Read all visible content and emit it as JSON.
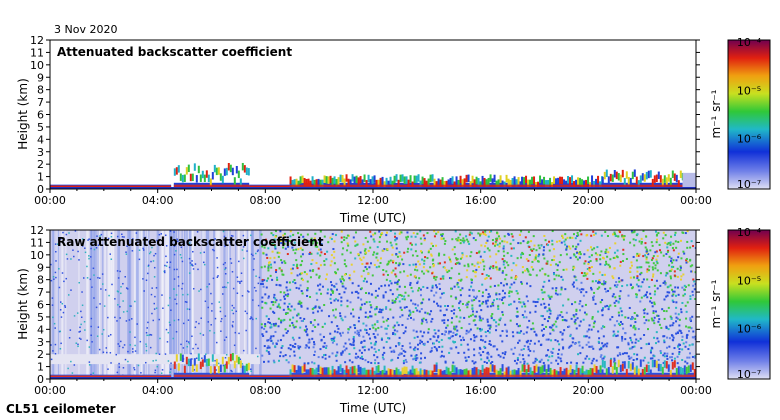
{
  "date": "3 Nov 2020",
  "instrument": "CL51 ceilometer",
  "colorbar": {
    "unit": "m⁻¹ sr⁻¹",
    "ticks": [
      "10⁻⁴",
      "10⁻⁵",
      "10⁻⁶",
      "10⁻⁷"
    ],
    "stops": [
      "#d8d8f0",
      "#5060e0",
      "#1030d0",
      "#20b0c0",
      "#40d040",
      "#c0e020",
      "#f0a010",
      "#e02010",
      "#800040"
    ]
  },
  "chart_data": [
    {
      "type": "heatmap",
      "title": "Attenuated backscatter coefficient",
      "xlabel": "Time (UTC)",
      "ylabel": "Height (km)",
      "xlim": [
        "00:00",
        "00:00"
      ],
      "xticks": [
        "00:00",
        "04:00",
        "08:00",
        "12:00",
        "16:00",
        "20:00",
        "00:00"
      ],
      "ylim": [
        0,
        12
      ],
      "yticks": [
        "0",
        "1",
        "2",
        "3",
        "4",
        "5",
        "6",
        "7",
        "8",
        "9",
        "10",
        "11",
        "12"
      ],
      "log_scale": true,
      "clim": [
        1e-07,
        0.0001
      ],
      "colors": {
        "background": "#ffffff",
        "haze": "#d6d6ec",
        "blue": "#2040d8",
        "green": "#30c040",
        "yellow": "#e0d020",
        "red": "#e02010",
        "cyan": "#20b0c8"
      },
      "segments": [
        {
          "t0": 0.0,
          "t1": 4.5,
          "top_km": 0.3,
          "level": "low"
        },
        {
          "t0": 4.6,
          "t1": 7.4,
          "top_km": 2.1,
          "level": "clouds"
        },
        {
          "t0": 7.4,
          "t1": 8.9,
          "top_km": 0.6,
          "level": "low"
        },
        {
          "t0": 8.9,
          "t1": 17.5,
          "top_km": 1.2,
          "level": "boundary"
        },
        {
          "t0": 17.5,
          "t1": 20.5,
          "top_km": 1.1,
          "level": "boundary"
        },
        {
          "t0": 20.5,
          "t1": 23.5,
          "top_km": 1.6,
          "level": "clouds"
        },
        {
          "t0": 23.5,
          "t1": 24.0,
          "top_km": 1.3,
          "level": "haze"
        }
      ]
    },
    {
      "type": "heatmap",
      "title": "Raw attenuated backscatter coefficient",
      "xlabel": "Time (UTC)",
      "ylabel": "Height (km)",
      "xlim": [
        "00:00",
        "00:00"
      ],
      "xticks": [
        "00:00",
        "04:00",
        "08:00",
        "12:00",
        "16:00",
        "20:00",
        "00:00"
      ],
      "ylim": [
        0,
        12
      ],
      "yticks": [
        "0",
        "1",
        "2",
        "3",
        "4",
        "5",
        "6",
        "7",
        "8",
        "9",
        "10",
        "11",
        "12"
      ],
      "log_scale": true,
      "clim": [
        1e-07,
        0.0001
      ],
      "colors": {
        "background": "#d0d0ee",
        "noise_blue": "#2a50e0",
        "noise_cyan": "#2ab8c0",
        "noise_green": "#40c840",
        "noise_yellow": "#e8d030",
        "noise_red": "#e03020",
        "haze": "#e4e4f2"
      },
      "noise_onset_hour": 7.8,
      "segments": [
        {
          "t0": 0.0,
          "t1": 4.5,
          "top_km": 0.3,
          "level": "low"
        },
        {
          "t0": 4.6,
          "t1": 7.4,
          "top_km": 2.1,
          "level": "clouds"
        },
        {
          "t0": 7.4,
          "t1": 8.9,
          "top_km": 0.6,
          "level": "low"
        },
        {
          "t0": 8.9,
          "t1": 20.5,
          "top_km": 1.2,
          "level": "boundary"
        },
        {
          "t0": 20.5,
          "t1": 24.0,
          "top_km": 1.6,
          "level": "clouds"
        }
      ]
    }
  ]
}
